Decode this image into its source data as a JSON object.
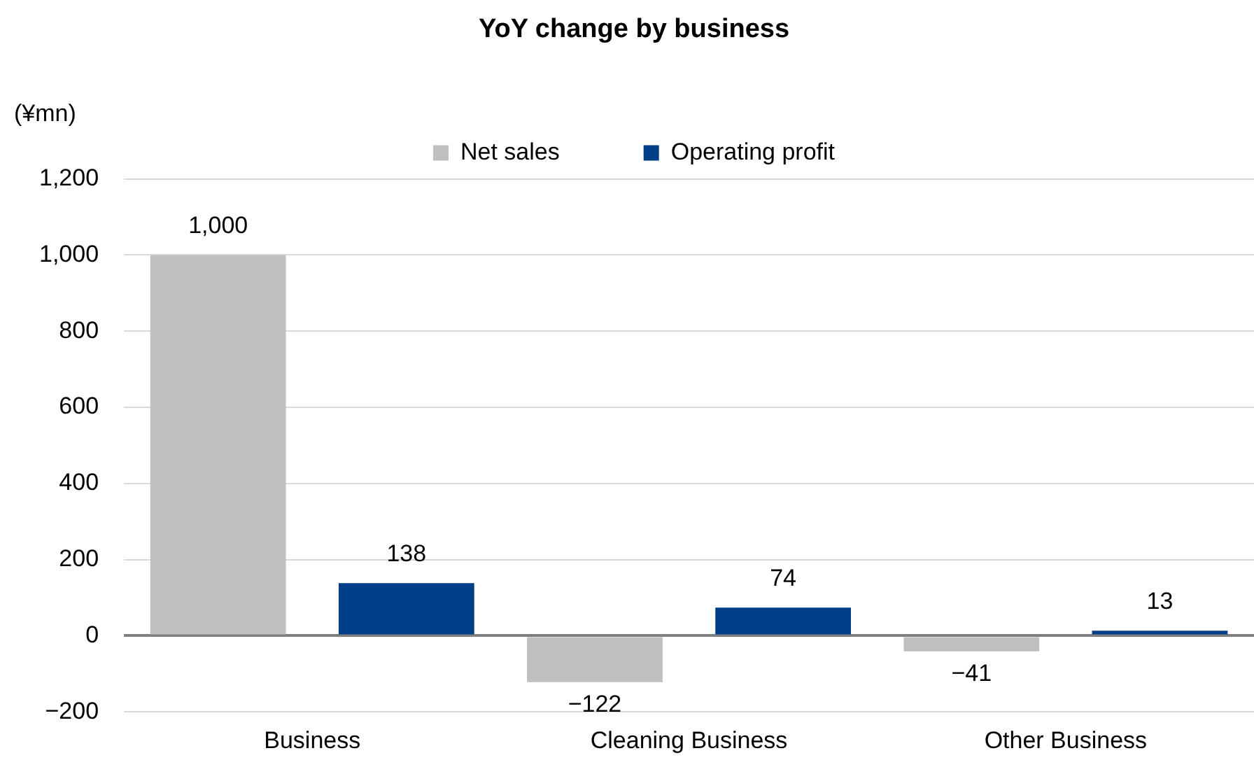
{
  "chart_data": {
    "type": "bar",
    "title": "YoY change by business",
    "ylabel": "(¥mn)",
    "categories": [
      "Business",
      "Cleaning Business",
      "Other Business"
    ],
    "series": [
      {
        "name": "Net sales",
        "color": "#bfbfbf",
        "values": [
          1000,
          -122,
          -41
        ],
        "value_labels": [
          "1,000",
          "−122",
          "−41"
        ]
      },
      {
        "name": "Operating profit",
        "color": "#003f87",
        "values": [
          138,
          74,
          13
        ],
        "value_labels": [
          "138",
          "74",
          "13"
        ]
      }
    ],
    "ylim": [
      -200,
      1200
    ],
    "yticks": [
      {
        "value": -200,
        "label": "−200"
      },
      0,
      200,
      400,
      600,
      800,
      {
        "value": 1000,
        "label": "1,000"
      },
      {
        "value": 1200,
        "label": "1,200"
      }
    ],
    "grid": "y",
    "legend": "top"
  }
}
